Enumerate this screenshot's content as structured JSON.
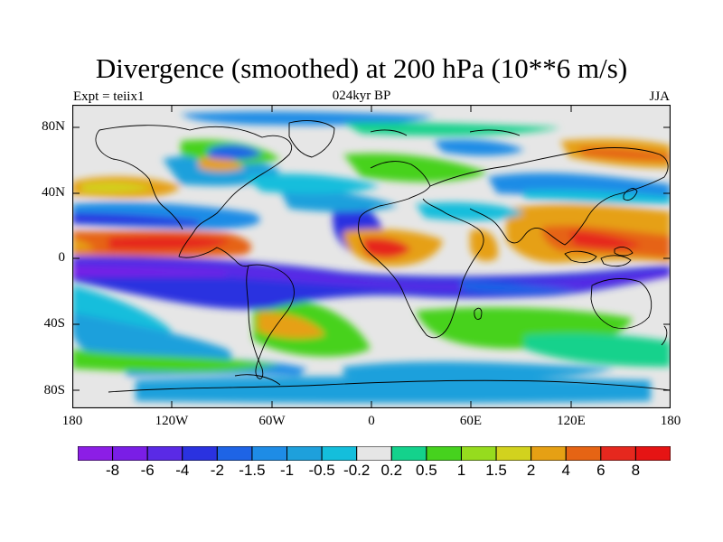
{
  "title": "Divergence (smoothed) at 200 hPa (10**6 m/s)",
  "left_string": "Expt = teiix1",
  "center_string": "024kyr BP",
  "right_string": "JJA",
  "lat_labels": [
    "80N",
    "40N",
    "0",
    "40S",
    "80S"
  ],
  "lon_labels": [
    "180",
    "120W",
    "60W",
    "0",
    "60E",
    "120E",
    "180"
  ],
  "colorbar": {
    "labels": [
      "-8",
      "-6",
      "-4",
      "-2",
      "-1.5",
      "-1",
      "-0.5",
      "-0.2",
      "0.2",
      "0.5",
      "1",
      "1.5",
      "2",
      "4",
      "6",
      "8"
    ],
    "colors": [
      "#8c1ee6",
      "#7a1ee6",
      "#5a2ae6",
      "#2a32e0",
      "#1e64e6",
      "#1e8ce6",
      "#1ea0dc",
      "#14bedc",
      "#e6e6e6",
      "#14d28c",
      "#46d21e",
      "#96dc1e",
      "#d2d21e",
      "#e6a014",
      "#e66414",
      "#e6281e",
      "#e61414"
    ]
  },
  "chart_data": {
    "type": "heatmap",
    "title": "Divergence (smoothed) at 200 hPa (10**6 m/s)",
    "variable": "200 hPa divergence, smoothed",
    "units": "10**6 m/s",
    "experiment": "teiix1",
    "period": "024kyr BP",
    "season": "JJA",
    "xlim": [
      -180,
      180
    ],
    "ylim": [
      -90,
      90
    ],
    "levels": [
      -8,
      -6,
      -4,
      -2,
      -1.5,
      -1,
      -0.5,
      -0.2,
      0.2,
      0.5,
      1,
      1.5,
      2,
      4,
      6,
      8
    ]
  }
}
